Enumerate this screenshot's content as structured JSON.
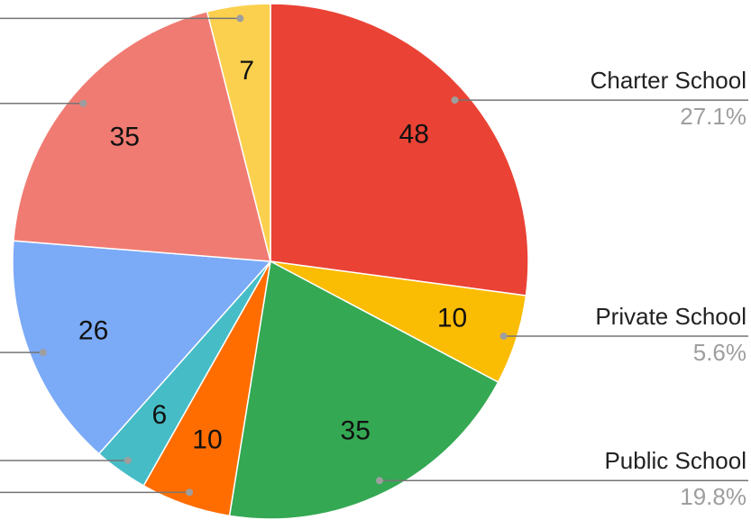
{
  "chart_data": {
    "type": "pie",
    "categories": [
      "Charter School",
      "Private School",
      "Public School",
      null,
      null,
      null,
      null,
      null
    ],
    "values": [
      48,
      10,
      35,
      10,
      6,
      26,
      35,
      7
    ],
    "percent_labels": [
      "27.1%",
      "5.6%",
      "19.8%",
      null,
      null,
      null,
      null,
      null
    ],
    "colors": [
      "#ea4335",
      "#fbbc04",
      "#34a853",
      "#ff6d01",
      "#46bdc6",
      "#7baaf7",
      "#f07b72",
      "#fcd04f"
    ]
  }
}
